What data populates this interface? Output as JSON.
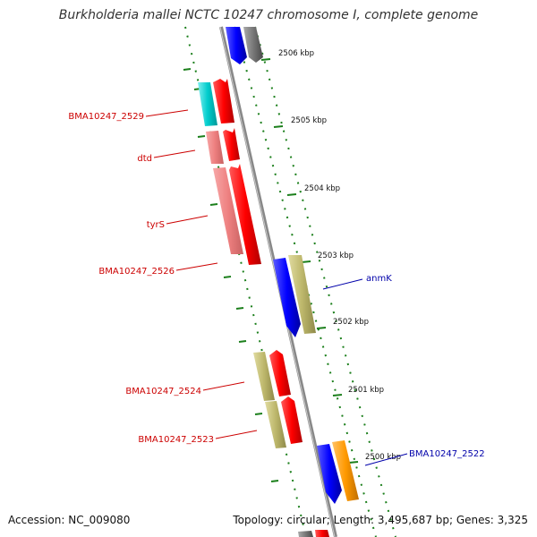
{
  "title": "Burkholderia mallei NCTC 10247 chromosome I, complete genome",
  "footer": {
    "accession": "Accession: NC_009080",
    "summary": "Topology: circular; Length: 3,495,687 bp; Genes: 3,325"
  },
  "colors": {
    "backbone": "#7f7f7f",
    "ruler": "#1b7f1b",
    "label_red": "#cc0000",
    "label_blue": "#0000aa",
    "gene_red": "#ff0000",
    "gene_pink": "#f08080",
    "gene_cyan": "#00cccc",
    "gene_blue": "#0000ff",
    "gene_khaki": "#bdb76b",
    "gene_orange": "#ff9900",
    "gene_gray": "#777777"
  },
  "ruler_ticks": [
    "2506 kbp",
    "2505 kbp",
    "2504 kbp",
    "2503 kbp",
    "2502 kbp",
    "2501 kbp",
    "2500 kbp"
  ],
  "gene_labels": {
    "bma2529": "BMA10247_2529",
    "dtd": "dtd",
    "tyrS": "tyrS",
    "bma2526": "BMA10247_2526",
    "anmK": "anmK",
    "bma2524": "BMA10247_2524",
    "bma2523": "BMA10247_2523",
    "bma2522": "BMA10247_2522"
  }
}
